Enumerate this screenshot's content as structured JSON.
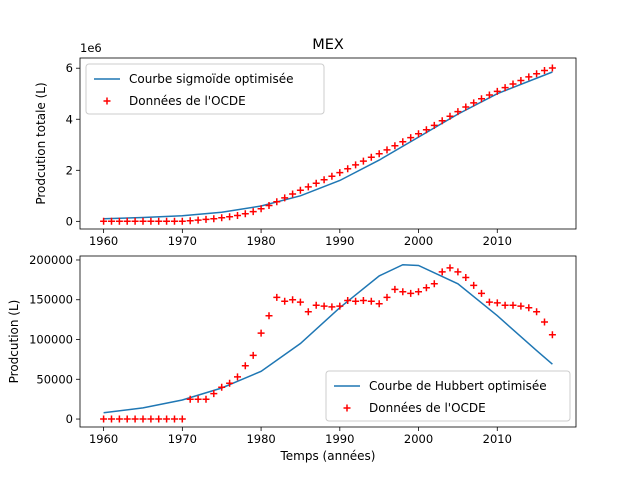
{
  "figure": {
    "title": "MEX"
  },
  "chart_data": [
    {
      "type": "line",
      "title": "MEX",
      "xlabel": "",
      "ylabel": "Prodcution totale (L)",
      "y_offset_label": "1e6",
      "xlim": [
        1957,
        2020
      ],
      "ylim": [
        -300000,
        6400000
      ],
      "x_ticks": [
        1960,
        1970,
        1980,
        1990,
        2000,
        2010
      ],
      "y_ticks": [
        0,
        2000000,
        4000000,
        6000000
      ],
      "y_tick_labels": [
        "0",
        "2",
        "4",
        "6"
      ],
      "legend": {
        "position": "top-left",
        "entries": [
          "Courbe sigmoïde optimisée",
          "Données de l'OCDE"
        ]
      },
      "colors": {
        "line": "#1f77b4",
        "markers": "#ff0000"
      },
      "series": [
        {
          "name": "Courbe sigmoïde optimisée",
          "kind": "line",
          "x": [
            1960,
            1965,
            1970,
            1975,
            1980,
            1985,
            1990,
            1995,
            2000,
            2005,
            2010,
            2017
          ],
          "y": [
            100000,
            150000,
            220000,
            360000,
            600000,
            1000000,
            1600000,
            2400000,
            3300000,
            4200000,
            5000000,
            5850000
          ]
        },
        {
          "name": "Données de l'OCDE",
          "kind": "scatter",
          "marker": "+",
          "x": [
            1960,
            1961,
            1962,
            1963,
            1964,
            1965,
            1966,
            1967,
            1968,
            1969,
            1970,
            1971,
            1972,
            1973,
            1974,
            1975,
            1976,
            1977,
            1978,
            1979,
            1980,
            1981,
            1982,
            1983,
            1984,
            1985,
            1986,
            1987,
            1988,
            1989,
            1990,
            1991,
            1992,
            1993,
            1994,
            1995,
            1996,
            1997,
            1998,
            1999,
            2000,
            2001,
            2002,
            2003,
            2004,
            2005,
            2006,
            2007,
            2008,
            2009,
            2010,
            2011,
            2012,
            2013,
            2014,
            2015,
            2016,
            2017
          ],
          "y": [
            0,
            0,
            0,
            0,
            0,
            0,
            0,
            0,
            0,
            0,
            0,
            25000,
            50000,
            75000,
            100000,
            140000,
            180000,
            230000,
            300000,
            380000,
            490000,
            620000,
            770000,
            920000,
            1070000,
            1220000,
            1350000,
            1490000,
            1630000,
            1770000,
            1910000,
            2060000,
            2210000,
            2360000,
            2510000,
            2650000,
            2800000,
            2960000,
            3120000,
            3280000,
            3430000,
            3590000,
            3760000,
            3940000,
            4120000,
            4300000,
            4480000,
            4640000,
            4800000,
            4950000,
            5090000,
            5240000,
            5380000,
            5520000,
            5660000,
            5780000,
            5910000,
            6010000
          ]
        }
      ]
    },
    {
      "type": "line",
      "title": "",
      "xlabel": "Temps (années)",
      "ylabel": "Prodcution (L)",
      "xlim": [
        1957,
        2020
      ],
      "ylim": [
        -10000,
        205000
      ],
      "x_ticks": [
        1960,
        1970,
        1980,
        1990,
        2000,
        2010
      ],
      "y_ticks": [
        0,
        50000,
        100000,
        150000,
        200000
      ],
      "y_tick_labels": [
        "0",
        "50000",
        "100000",
        "150000",
        "200000"
      ],
      "legend": {
        "position": "lower-right",
        "entries": [
          "Courbe de Hubbert optimisée",
          "Données de l'OCDE"
        ]
      },
      "colors": {
        "line": "#1f77b4",
        "markers": "#ff0000"
      },
      "series": [
        {
          "name": "Courbe de Hubbert optimisée",
          "kind": "line",
          "x": [
            1960,
            1965,
            1970,
            1975,
            1980,
            1985,
            1990,
            1995,
            1998,
            2000,
            2005,
            2010,
            2015,
            2017
          ],
          "y": [
            8000,
            14000,
            24000,
            39000,
            60000,
            95000,
            140000,
            180000,
            194000,
            193000,
            170000,
            130000,
            86000,
            69000
          ]
        },
        {
          "name": "Données de l'OCDE",
          "kind": "scatter",
          "marker": "+",
          "x": [
            1960,
            1961,
            1962,
            1963,
            1964,
            1965,
            1966,
            1967,
            1968,
            1969,
            1970,
            1971,
            1972,
            1973,
            1974,
            1975,
            1976,
            1977,
            1978,
            1979,
            1980,
            1981,
            1982,
            1983,
            1984,
            1985,
            1986,
            1987,
            1988,
            1989,
            1990,
            1991,
            1992,
            1993,
            1994,
            1995,
            1996,
            1997,
            1998,
            1999,
            2000,
            2001,
            2002,
            2003,
            2004,
            2005,
            2006,
            2007,
            2008,
            2009,
            2010,
            2011,
            2012,
            2013,
            2014,
            2015,
            2016,
            2017
          ],
          "y": [
            0,
            0,
            0,
            0,
            0,
            0,
            0,
            0,
            0,
            0,
            0,
            25000,
            25000,
            25000,
            32000,
            40000,
            45000,
            53000,
            67000,
            80000,
            108000,
            130000,
            153000,
            148000,
            150000,
            147000,
            135000,
            143000,
            142000,
            141000,
            142000,
            149000,
            148000,
            149000,
            148000,
            145000,
            153000,
            163000,
            160000,
            158000,
            160000,
            165000,
            170000,
            185000,
            190000,
            185000,
            178000,
            168000,
            158000,
            147000,
            146000,
            143000,
            143000,
            142000,
            140000,
            135000,
            122000,
            106000
          ]
        }
      ]
    }
  ]
}
